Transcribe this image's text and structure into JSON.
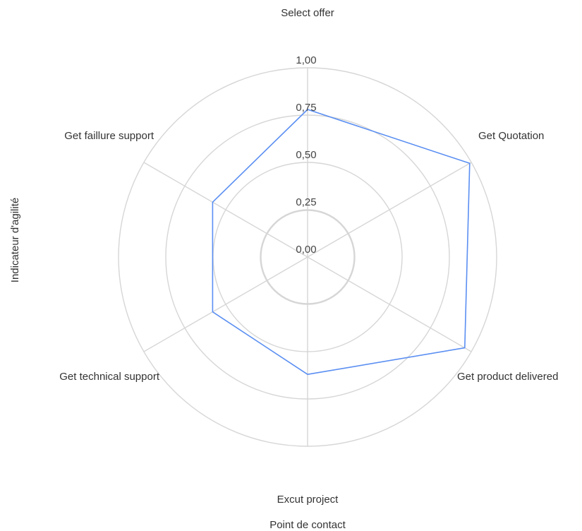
{
  "chart_data": {
    "type": "radar",
    "categories": [
      "Select offer",
      "Get Quotation",
      "Get product delivered",
      "Excut project",
      "Get technical support",
      "Get faillure support"
    ],
    "series": [
      {
        "values": [
          0.78,
          0.99,
          0.96,
          0.62,
          0.58,
          0.58
        ],
        "color": "#5b8ff2"
      }
    ],
    "ticks": [
      "0,00",
      "0,25",
      "0,50",
      "0,75",
      "1,00"
    ],
    "tick_values": [
      0,
      0.25,
      0.5,
      0.75,
      1.0
    ],
    "rlim": [
      0,
      1.0
    ],
    "xlabel": "Point de contact",
    "ylabel": "Indicateur d'agilité",
    "grid": true,
    "legend": "none"
  }
}
